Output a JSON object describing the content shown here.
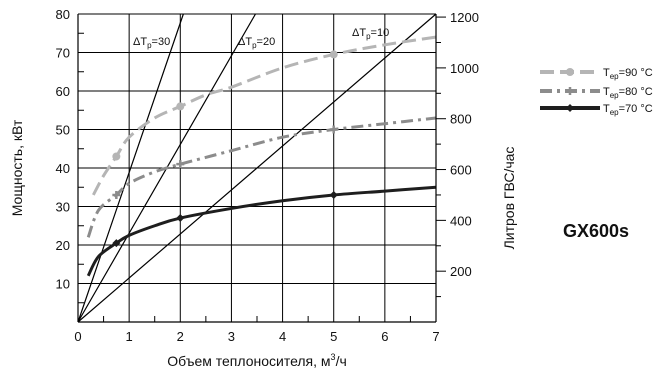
{
  "chart_data": {
    "type": "line",
    "xlabel_main": "Объем теплоносителя, м",
    "xlabel_sup": "3",
    "xlabel_tail": "/ч",
    "ylabel": "Мощность, кВт",
    "y2label": "Литров ГВС/час",
    "xlim": [
      0,
      7
    ],
    "ylim": [
      0,
      80
    ],
    "x_ticks": [
      "0",
      "1",
      "2",
      "3",
      "4",
      "5",
      "6",
      "7"
    ],
    "y_ticks": [
      "10",
      "20",
      "30",
      "40",
      "50",
      "60",
      "70",
      "80"
    ],
    "y2_ticks": [
      {
        "label": "200",
        "y": 13.2
      },
      {
        "label": "400",
        "y": 26.4
      },
      {
        "label": "600",
        "y": 39.6
      },
      {
        "label": "800",
        "y": 52.8
      },
      {
        "label": "1000",
        "y": 66.0
      },
      {
        "label": "1200",
        "y": 79.2
      }
    ],
    "grid": true,
    "series": [
      {
        "name": "T",
        "sub": "ep",
        "suffix": "=90 °C",
        "color": "#b5b5b5",
        "dash": "14 6",
        "width": 3,
        "marker": "circle",
        "x": [
          0.3,
          0.5,
          0.75,
          1.0,
          1.5,
          2.0,
          2.5,
          3.0,
          4.0,
          5.0,
          6.0,
          7.0
        ],
        "y": [
          33,
          38,
          43,
          48,
          53,
          56,
          59,
          61,
          66,
          69.5,
          72,
          74
        ],
        "marked": [
          [
            0.75,
            43
          ],
          [
            2.0,
            56
          ],
          [
            5.0,
            69.5
          ]
        ]
      },
      {
        "name": "T",
        "sub": "ep",
        "suffix": "=80 °C",
        "color": "#8c8c8c",
        "dash": "12 5 3 5",
        "width": 3,
        "marker": "plus",
        "x": [
          0.2,
          0.4,
          0.75,
          1.0,
          1.5,
          2.0,
          3.0,
          4.0,
          5.0,
          6.0,
          7.0
        ],
        "y": [
          22,
          29,
          33,
          36,
          39,
          41,
          44.5,
          48,
          50,
          51.5,
          53
        ],
        "marked": [
          [
            0.75,
            33
          ],
          [
            2.0,
            41
          ],
          [
            5.0,
            50
          ]
        ]
      },
      {
        "name": "T",
        "sub": "ep",
        "suffix": "=70 °C",
        "color": "#1e1e1e",
        "dash": "",
        "width": 3,
        "marker": "diamond",
        "x": [
          0.2,
          0.4,
          0.75,
          1.0,
          1.5,
          2.0,
          3.0,
          4.0,
          5.0,
          6.0,
          7.0
        ],
        "y": [
          12,
          17,
          20.5,
          22.5,
          25,
          27,
          29.5,
          31.5,
          33,
          34,
          35
        ],
        "marked": [
          [
            0.75,
            20.5
          ],
          [
            2.0,
            27
          ],
          [
            5.0,
            33
          ]
        ]
      }
    ],
    "dt_lines": [
      {
        "label": "ΔT",
        "sub": "p",
        "value": "=30",
        "to": [
          2.06,
          80
        ]
      },
      {
        "label": "ΔT",
        "sub": "p",
        "value": "=20",
        "to": [
          3.47,
          80
        ]
      },
      {
        "label": "ΔT",
        "sub": "p",
        "value": "=10",
        "to": [
          7.0,
          80
        ]
      }
    ],
    "model": "GX600s"
  }
}
